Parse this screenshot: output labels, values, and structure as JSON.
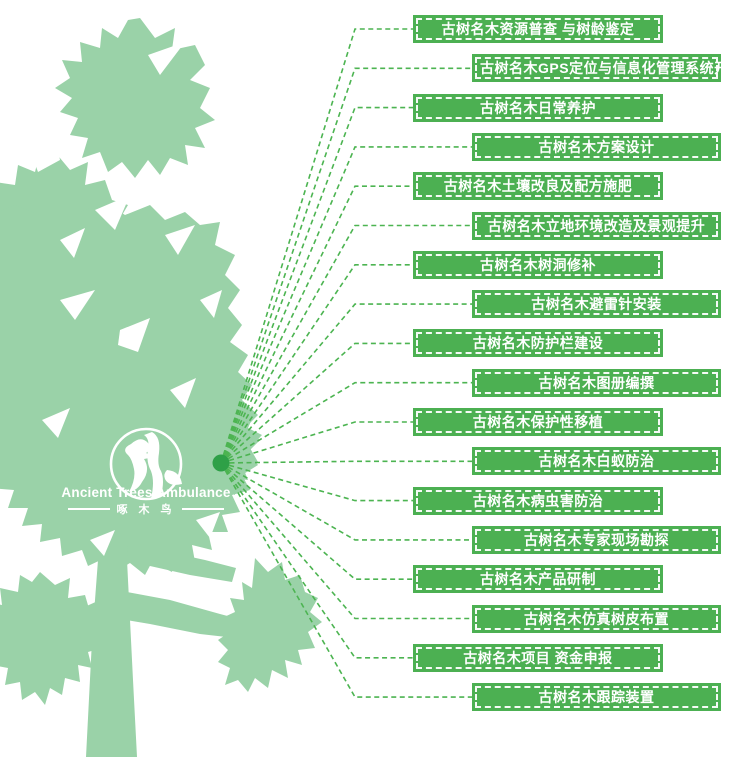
{
  "logo": {
    "title": "Ancient Trees Ambulance",
    "subtitle": "啄 木 鸟",
    "icon": "woodpecker-in-circle-icon"
  },
  "services": [
    "古树名木资源普查 与树龄鉴定",
    "古树名木GPS定位与信息化管理系统开发",
    "古树名木日常养护",
    "古树名木方案设计",
    "古树名木土壤改良及配方施肥",
    "古树名木立地环境改造及景观提升",
    "古树名木树洞修补",
    "古树名木避雷针安装",
    "古树名木防护栏建设",
    "古树名木图册编撰",
    "古树名木保护性移植",
    "古树名木白蚁防治",
    "古树名木病虫害防治",
    "古树名木专家现场勘探",
    "古树名木产品研制",
    "古树名木仿真树皮布置",
    "古树名木项目 资金申报",
    "古树名木跟踪装置"
  ],
  "colors": {
    "tree": "#9ad2a8",
    "banner": "#4cb052",
    "line": "#4cb451",
    "dot": "#2ea047",
    "text": "#ffffff"
  }
}
